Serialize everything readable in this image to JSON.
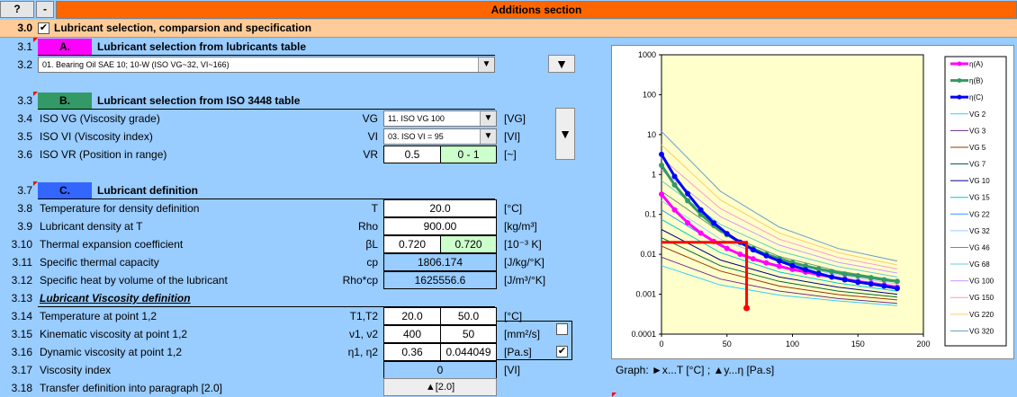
{
  "header": {
    "help_label": "?",
    "minus_label": "-",
    "title": "Additions section"
  },
  "section_30": {
    "num": "3.0",
    "checkbox": "✔",
    "title": "Lubricant selection, comparsion and specification"
  },
  "rows": {
    "r31": {
      "num": "3.1",
      "badge": "A.",
      "title": "Lubricant selection from lubricants table"
    },
    "r32": {
      "num": "3.2",
      "combo_value": "01. Bearing Oil SAE 10; 10-W (ISO VG~32, VI~166)",
      "button": "▼"
    },
    "r33": {
      "num": "3.3",
      "badge": "B.",
      "title": "Lubricant selection from ISO 3448 table"
    },
    "r34": {
      "num": "3.4",
      "label": "ISO VG (Viscosity grade)",
      "sym": "VG",
      "combo_value": "11. ISO VG 100",
      "unit": "[VG]"
    },
    "r35": {
      "num": "3.5",
      "label": "ISO VI (Viscosity index)",
      "sym": "VI",
      "combo_value": "03. ISO VI = 95",
      "unit": "[VI]",
      "button": "▼"
    },
    "r36": {
      "num": "3.6",
      "label": "ISO VR (Position in range)",
      "sym": "VR",
      "value": "0.5",
      "range": "0 - 1",
      "unit": "[~]"
    },
    "r37": {
      "num": "3.7",
      "badge": "C.",
      "title": "Lubricant definition"
    },
    "r38": {
      "num": "3.8",
      "label": "Temperature for density definition",
      "sym": "T",
      "value": "20.0",
      "unit": "[°C]"
    },
    "r39": {
      "num": "3.9",
      "label": "Lubricant density at T",
      "sym": "Rho",
      "value": "900.00",
      "unit": "[kg/m³]"
    },
    "r310": {
      "num": "3.10",
      "label": "Thermal expansion coefficient",
      "sym": "βL",
      "value1": "0.720",
      "value2": "0.720",
      "unit": "[10⁻³ K]"
    },
    "r311": {
      "num": "3.11",
      "label": "Specific thermal capacity",
      "sym": "cp",
      "value": "1806.174",
      "unit": "[J/kg/°K]"
    },
    "r312": {
      "num": "3.12",
      "label": "Specific heat by volume of the lubricant",
      "sym": "Rho*cp",
      "value": "1625556.6",
      "unit": "[J/m³/°K]"
    },
    "r313": {
      "num": "3.13",
      "title": "Lubricant Viscosity definition"
    },
    "r314": {
      "num": "3.14",
      "label": "Temperature at point 1,2",
      "sym": "T1,T2",
      "value1": "20.0",
      "value2": "50.0",
      "unit": "[°C]"
    },
    "r315": {
      "num": "3.15",
      "label": "Kinematic viscosity at point 1,2",
      "sym": "ν1, ν2",
      "value1": "400",
      "value2": "50",
      "unit": "[mm²/s]"
    },
    "r316": {
      "num": "3.16",
      "label": "Dynamic viscosity at point 1,2",
      "sym": "η1, η2",
      "value1": "0.36",
      "value2": "0.044049",
      "unit": "[Pa.s]",
      "checkbox": "✔"
    },
    "r317": {
      "num": "3.17",
      "label": "Viscosity index",
      "value": "0",
      "unit": "[VI]"
    },
    "r318": {
      "num": "3.18",
      "label": "Transfer definition into paragraph [2.0]",
      "button": "▲[2.0]"
    }
  },
  "graph_caption": "Graph:  ►x...T [°C] ;     ▲y...η [Pa.s]",
  "chart_data": {
    "type": "line",
    "y_scale": "log",
    "ylim": [
      0.0001,
      1000
    ],
    "xlim": [
      0,
      200
    ],
    "x_ticks": [
      "0",
      "50",
      "100",
      "150",
      "200"
    ],
    "y_ticks": [
      "0.0001",
      "0.001",
      "0.01",
      "0.1",
      "1",
      "10",
      "100",
      "1000"
    ],
    "legend_position": "right",
    "plot_background": "#ffffcc",
    "series": [
      {
        "name": "η(A)",
        "color": "#ff00ff",
        "width": 3,
        "markers": true,
        "x": [
          0,
          10,
          20,
          30,
          40,
          50,
          60,
          70,
          80,
          90,
          100,
          110,
          120,
          130,
          140,
          150,
          160,
          170,
          180
        ],
        "y": [
          0.32,
          0.13,
          0.062,
          0.034,
          0.021,
          0.014,
          0.0101,
          0.0077,
          0.0061,
          0.005,
          0.0042,
          0.0036,
          0.0031,
          0.0027,
          0.0024,
          0.0021,
          0.0019,
          0.0017,
          0.0015
        ]
      },
      {
        "name": "η(B)",
        "color": "#339966",
        "width": 3,
        "markers": true,
        "x": [
          0,
          10,
          20,
          30,
          40,
          50,
          60,
          70,
          80,
          90,
          100,
          110,
          120,
          130,
          140,
          150,
          160,
          170,
          180
        ],
        "y": [
          1.7,
          0.55,
          0.22,
          0.1,
          0.053,
          0.031,
          0.02,
          0.0138,
          0.0101,
          0.0078,
          0.0062,
          0.0051,
          0.0043,
          0.0037,
          0.0032,
          0.0029,
          0.0026,
          0.0023,
          0.0021
        ]
      },
      {
        "name": "η(C)",
        "color": "#0000ff",
        "width": 3,
        "markers": true,
        "x": [
          0,
          10,
          20,
          30,
          40,
          50,
          60,
          70,
          80,
          90,
          100,
          110,
          120,
          130,
          140,
          150,
          160,
          170,
          180
        ],
        "y": [
          3.2,
          0.9,
          0.33,
          0.13,
          0.061,
          0.033,
          0.02,
          0.013,
          0.0092,
          0.0068,
          0.0052,
          0.0041,
          0.0033,
          0.0027,
          0.0023,
          0.002,
          0.0018,
          0.0016,
          0.0014
        ]
      },
      {
        "name": "VG 2",
        "color": "#33ccff",
        "width": 1,
        "x": [
          0,
          45,
          90,
          135,
          180
        ],
        "y": [
          0.0052,
          0.0017,
          0.00095,
          0.00068,
          0.00052
        ]
      },
      {
        "name": "VG 3",
        "color": "#6d2c86",
        "width": 1,
        "x": [
          0,
          45,
          90,
          135,
          180
        ],
        "y": [
          0.0085,
          0.0024,
          0.0012,
          0.00078,
          0.00059
        ]
      },
      {
        "name": "VG 5",
        "color": "#993300",
        "width": 1,
        "x": [
          0,
          45,
          90,
          135,
          180
        ],
        "y": [
          0.016,
          0.0038,
          0.0016,
          0.00098,
          0.00072
        ]
      },
      {
        "name": "VG 7",
        "color": "#006633",
        "width": 1,
        "x": [
          0,
          45,
          90,
          135,
          180
        ],
        "y": [
          0.026,
          0.0052,
          0.0021,
          0.0012,
          0.00085
        ]
      },
      {
        "name": "VG 10",
        "color": "#000080",
        "width": 1,
        "x": [
          0,
          45,
          90,
          135,
          180
        ],
        "y": [
          0.042,
          0.0072,
          0.0027,
          0.0015,
          0.001
        ]
      },
      {
        "name": "VG 15",
        "color": "#00cccc",
        "width": 1,
        "x": [
          0,
          45,
          90,
          135,
          180
        ],
        "y": [
          0.075,
          0.011,
          0.0036,
          0.0019,
          0.0012
        ]
      },
      {
        "name": "VG 22",
        "color": "#3399ff",
        "width": 1,
        "x": [
          0,
          45,
          90,
          135,
          180
        ],
        "y": [
          0.13,
          0.016,
          0.0048,
          0.0024,
          0.0015
        ]
      },
      {
        "name": "VG 32",
        "color": "#99ccff",
        "width": 1,
        "x": [
          0,
          45,
          90,
          135,
          180
        ],
        "y": [
          0.22,
          0.024,
          0.0065,
          0.003,
          0.0018
        ]
      },
      {
        "name": "VG 46",
        "color": "#669966",
        "width": 1,
        "x": [
          0,
          45,
          90,
          135,
          180
        ],
        "y": [
          0.38,
          0.036,
          0.0088,
          0.0038,
          0.0022
        ]
      },
      {
        "name": "VG 68",
        "color": "#66cccc",
        "width": 1,
        "x": [
          0,
          45,
          90,
          135,
          180
        ],
        "y": [
          0.7,
          0.056,
          0.012,
          0.0049,
          0.0027
        ]
      },
      {
        "name": "VG 100",
        "color": "#cc99ff",
        "width": 1,
        "x": [
          0,
          45,
          90,
          135,
          180
        ],
        "y": [
          1.3,
          0.088,
          0.017,
          0.0063,
          0.0034
        ]
      },
      {
        "name": "VG 150",
        "color": "#ff99cc",
        "width": 1,
        "x": [
          0,
          45,
          90,
          135,
          180
        ],
        "y": [
          2.6,
          0.14,
          0.024,
          0.0083,
          0.0043
        ]
      },
      {
        "name": "VG 220",
        "color": "#ffcc66",
        "width": 1,
        "x": [
          0,
          45,
          90,
          135,
          180
        ],
        "y": [
          5.5,
          0.23,
          0.034,
          0.011,
          0.0054
        ]
      },
      {
        "name": "VG 320",
        "color": "#6699cc",
        "width": 1,
        "x": [
          0,
          45,
          90,
          135,
          180
        ],
        "y": [
          12,
          0.38,
          0.048,
          0.014,
          0.0068
        ]
      }
    ],
    "annotation": {
      "color": "#ff0000",
      "point_x": 65,
      "point_y": 0.02,
      "x0": 0,
      "y_bottom": 0.00045
    }
  }
}
